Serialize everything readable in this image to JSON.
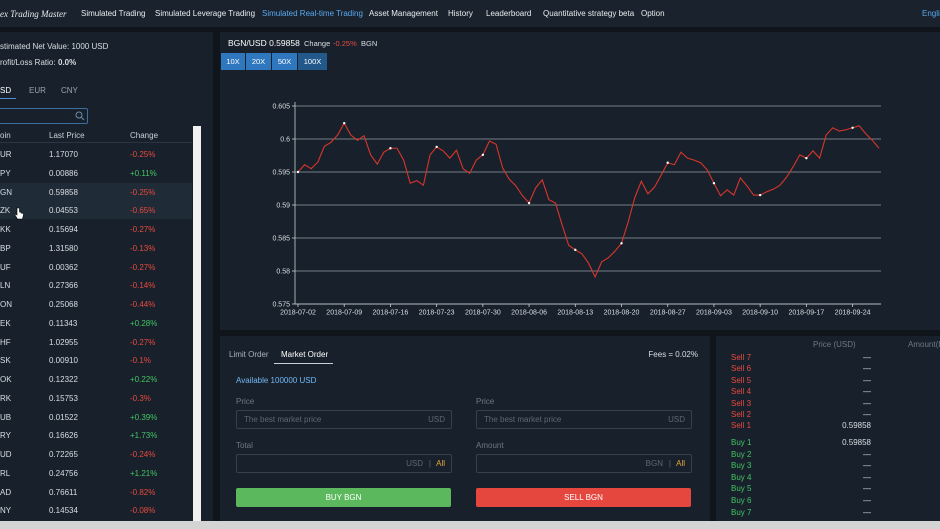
{
  "nav": {
    "logo": "ex Trading Master",
    "items": [
      "Simulated Trading",
      "Simulated Leverage Trading",
      "Simulated Real-time Trading",
      "Asset Management",
      "History",
      "Leaderboard",
      "Quantitative strategy beta",
      "Option"
    ],
    "lang": "Engli"
  },
  "account": {
    "net_value": "stimated Net Value: 1000 USD",
    "ratio_label": "rofit/Loss Ratio:",
    "ratio": "0.0%"
  },
  "currency_tabs": [
    "SD",
    "EUR",
    "CNY"
  ],
  "market_table": {
    "headers": [
      "oin",
      "Last Price",
      "Change"
    ],
    "rows": [
      [
        "UR",
        "1.17070",
        "-0.25%"
      ],
      [
        "PY",
        "0.00886",
        "+0.11%"
      ],
      [
        "GN",
        "0.59858",
        "-0.25%"
      ],
      [
        "ZK",
        "0.04553",
        "-0.65%"
      ],
      [
        "KK",
        "0.15694",
        "-0.27%"
      ],
      [
        "BP",
        "1.31580",
        "-0.13%"
      ],
      [
        "UF",
        "0.00362",
        "-0.27%"
      ],
      [
        "LN",
        "0.27366",
        "-0.14%"
      ],
      [
        "ON",
        "0.25068",
        "-0.44%"
      ],
      [
        "EK",
        "0.11343",
        "+0.28%"
      ],
      [
        "HF",
        "1.02955",
        "-0.27%"
      ],
      [
        "SK",
        "0.00910",
        "-0.1%"
      ],
      [
        "OK",
        "0.12322",
        "+0.22%"
      ],
      [
        "RK",
        "0.15753",
        "-0.3%"
      ],
      [
        "UB",
        "0.01522",
        "+0.39%"
      ],
      [
        "RY",
        "0.16626",
        "+1.73%"
      ],
      [
        "UD",
        "0.72265",
        "-0.24%"
      ],
      [
        "RL",
        "0.24756",
        "+1.21%"
      ],
      [
        "AD",
        "0.76611",
        "-0.82%"
      ],
      [
        "NY",
        "0.14534",
        "-0.08%"
      ]
    ]
  },
  "pair_header": {
    "pair": "BGN/USD 0.59858",
    "change_label": "Change",
    "change": "-0.25%",
    "base": "BGN"
  },
  "leverage": [
    "10X",
    "20X",
    "50X",
    "100X"
  ],
  "chart_data": {
    "type": "line",
    "series": [
      {
        "name": "BGN/USD",
        "color": "#d8352a",
        "values": [
          0.595,
          0.5961,
          0.5955,
          0.5965,
          0.5989,
          0.5995,
          0.6006,
          0.6024,
          0.6006,
          0.5998,
          0.6005,
          0.5976,
          0.5962,
          0.598,
          0.5986,
          0.5986,
          0.5968,
          0.5933,
          0.5937,
          0.593,
          0.5976,
          0.5988,
          0.5982,
          0.5971,
          0.5983,
          0.5955,
          0.5948,
          0.5968,
          0.5976,
          0.5997,
          0.5992,
          0.5956,
          0.5939,
          0.5929,
          0.5914,
          0.5903,
          0.5926,
          0.5938,
          0.5908,
          0.5903,
          0.587,
          0.5839,
          0.5832,
          0.5826,
          0.5812,
          0.5791,
          0.5814,
          0.582,
          0.583,
          0.5842,
          0.5874,
          0.5911,
          0.5936,
          0.5917,
          0.5927,
          0.5945,
          0.5964,
          0.5961,
          0.598,
          0.5971,
          0.5968,
          0.5964,
          0.5953,
          0.5933,
          0.5914,
          0.5923,
          0.5915,
          0.5941,
          0.5929,
          0.5915,
          0.5915,
          0.592,
          0.5924,
          0.593,
          0.5942,
          0.5958,
          0.5976,
          0.5971,
          0.5982,
          0.5971,
          0.6006,
          0.6017,
          0.6012,
          0.6014,
          0.6017,
          0.602,
          0.6008,
          0.5998,
          0.5986
        ]
      }
    ],
    "x": [
      "2018-07-02",
      "2018-07-03",
      "2018-07-04",
      "2018-07-05",
      "2018-07-06",
      "2018-07-07",
      "2018-07-08",
      "2018-07-09",
      "2018-07-10",
      "2018-07-11",
      "2018-07-12",
      "2018-07-13",
      "2018-07-14",
      "2018-07-15",
      "2018-07-16",
      "2018-07-17",
      "2018-07-18",
      "2018-07-19",
      "2018-07-20",
      "2018-07-21",
      "2018-07-22",
      "2018-07-23",
      "2018-07-24",
      "2018-07-25",
      "2018-07-26",
      "2018-07-27",
      "2018-07-28",
      "2018-07-29",
      "2018-07-30",
      "2018-07-31",
      "2018-08-01",
      "2018-08-02",
      "2018-08-03",
      "2018-08-04",
      "2018-08-05",
      "2018-08-06",
      "2018-08-07",
      "2018-08-08",
      "2018-08-09",
      "2018-08-10",
      "2018-08-11",
      "2018-08-12",
      "2018-08-13",
      "2018-08-14",
      "2018-08-15",
      "2018-08-16",
      "2018-08-17",
      "2018-08-18",
      "2018-08-19",
      "2018-08-20",
      "2018-08-21",
      "2018-08-22",
      "2018-08-23",
      "2018-08-24",
      "2018-08-25",
      "2018-08-26",
      "2018-08-27",
      "2018-08-28",
      "2018-08-29",
      "2018-08-30",
      "2018-08-31",
      "2018-09-01",
      "2018-09-02",
      "2018-09-03",
      "2018-09-04",
      "2018-09-05",
      "2018-09-06",
      "2018-09-07",
      "2018-09-08",
      "2018-09-09",
      "2018-09-10",
      "2018-09-11",
      "2018-09-12",
      "2018-09-13",
      "2018-09-14",
      "2018-09-15",
      "2018-09-16",
      "2018-09-17",
      "2018-09-18",
      "2018-09-19",
      "2018-09-20",
      "2018-09-21",
      "2018-09-22",
      "2018-09-23",
      "2018-09-24",
      "2018-09-25",
      "2018-09-26",
      "2018-09-27",
      "2018-09-28"
    ],
    "xlim": [
      "2018-07-02",
      "2018-09-28"
    ],
    "xticks": [
      "2018-07-02",
      "2018-07-09",
      "2018-07-16",
      "2018-07-23",
      "2018-07-30",
      "2018-08-06",
      "2018-08-13",
      "2018-08-20",
      "2018-08-27",
      "2018-09-03",
      "2018-09-10",
      "2018-09-17",
      "2018-09-24"
    ],
    "ylim": [
      0.575,
      0.605
    ],
    "yticks": [
      0.575,
      0.58,
      0.585,
      0.59,
      0.595,
      0.6,
      0.605
    ],
    "grid": true
  },
  "order_form": {
    "tabs": [
      "Limit Order",
      "Market Order"
    ],
    "fees": "Fees = 0.02%",
    "available": "Available 100000 USD",
    "buy": {
      "price_label": "Price",
      "price_placeholder": "The best market price",
      "price_unit": "USD",
      "total_label": "Total",
      "total_unit": "USD",
      "all": "All",
      "button": "BUY BGN"
    },
    "sell": {
      "price_label": "Price",
      "price_placeholder": "The best market price",
      "price_unit": "USD",
      "amount_label": "Amount",
      "amount_unit": "BGN",
      "all": "All",
      "button": "SELL BGN"
    }
  },
  "order_book": {
    "headers": [
      "Price (USD)",
      "Amount(B"
    ],
    "sells": [
      [
        "Sell 7",
        "—"
      ],
      [
        "Sell 6",
        "—"
      ],
      [
        "Sell 5",
        "—"
      ],
      [
        "Sell 4",
        "—"
      ],
      [
        "Sell 3",
        "—"
      ],
      [
        "Sell 2",
        "—"
      ],
      [
        "Sell 1",
        "0.59858"
      ]
    ],
    "buys": [
      [
        "Buy 1",
        "0.59858"
      ],
      [
        "Buy 2",
        "—"
      ],
      [
        "Buy 3",
        "—"
      ],
      [
        "Buy 4",
        "—"
      ],
      [
        "Buy 5",
        "—"
      ],
      [
        "Buy 6",
        "—"
      ],
      [
        "Buy 7",
        "—"
      ]
    ]
  }
}
